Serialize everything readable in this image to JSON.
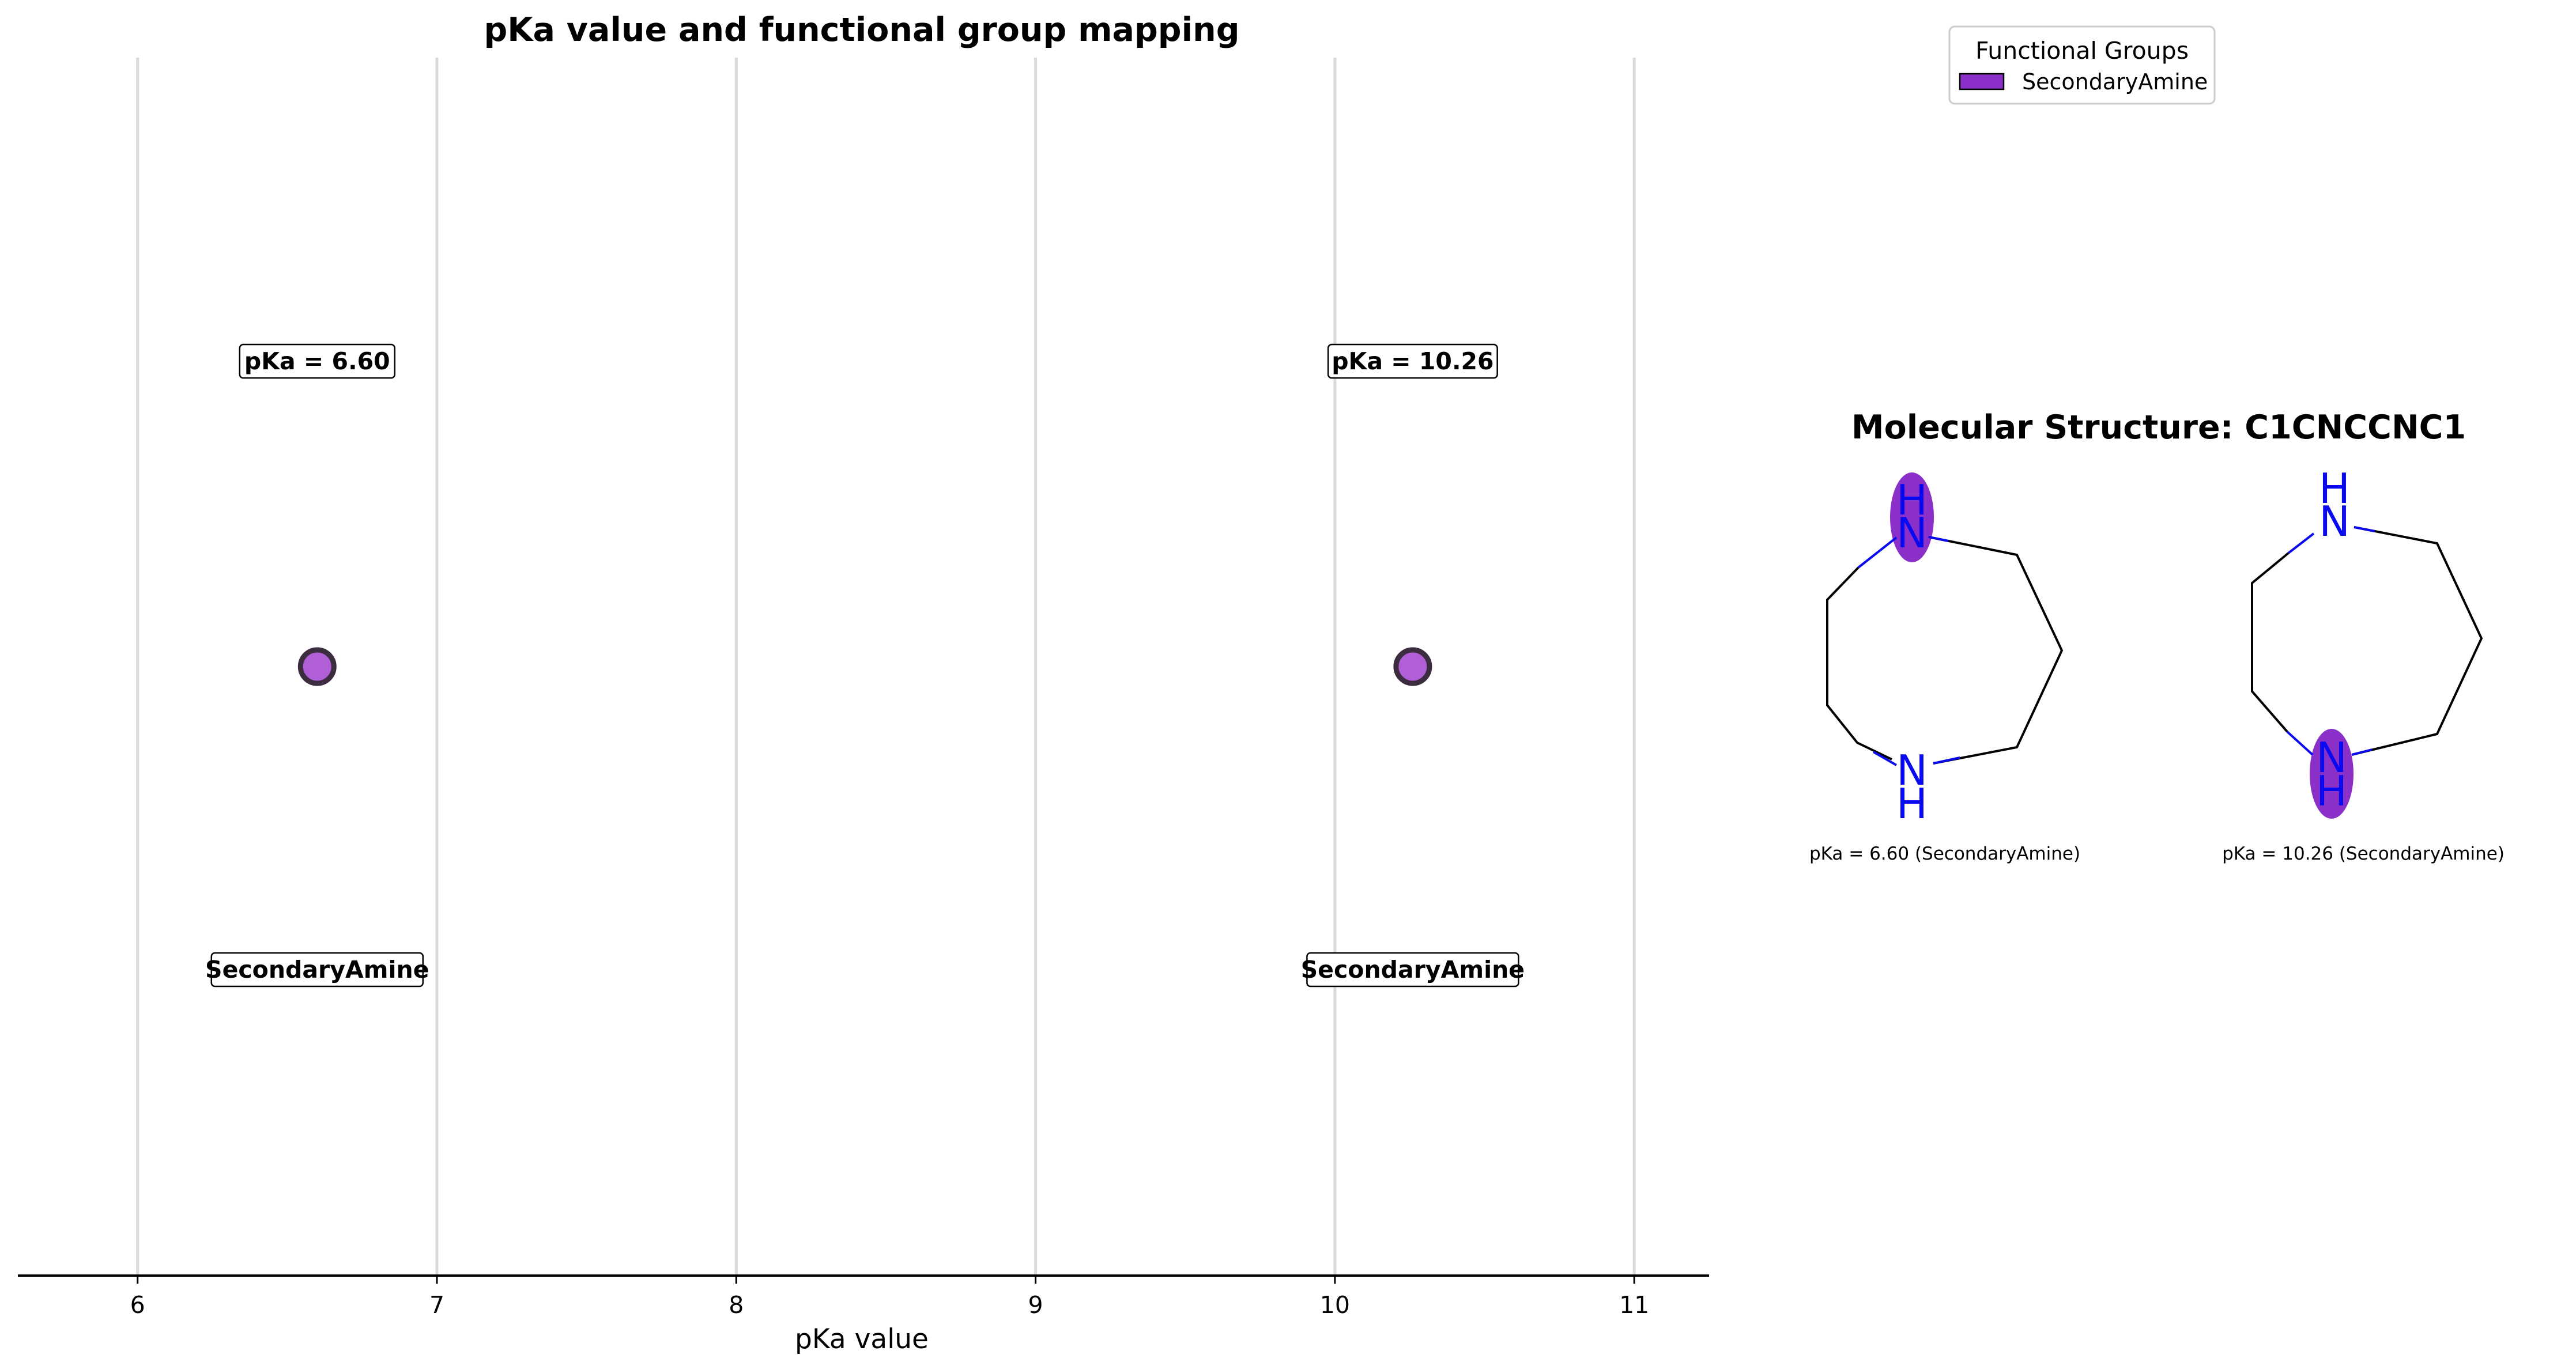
{
  "chart_data": {
    "type": "scatter",
    "title": "pKa value and functional group mapping",
    "xlabel": "pKa value",
    "ylabel": "",
    "xlim": [
      5.6,
      11.25
    ],
    "grid": "vertical",
    "ticks": [
      "6",
      "7",
      "8",
      "9",
      "10",
      "11"
    ],
    "tick_values": [
      6,
      7,
      8,
      9,
      10,
      11
    ],
    "points": [
      {
        "x": 6.6,
        "group": "SecondaryAmine",
        "value_label": "pKa = 6.60",
        "group_label": "SecondaryAmine"
      },
      {
        "x": 10.26,
        "group": "SecondaryAmine",
        "value_label": "pKa = 10.26",
        "group_label": "SecondaryAmine"
      }
    ],
    "point_color": "#b05fd6",
    "point_edge_color": "#3b2d3f"
  },
  "legend": {
    "title": "Functional Groups",
    "placement": "top-right",
    "entries": [
      {
        "label": "SecondaryAmine",
        "color": "#8b2fc9"
      }
    ]
  },
  "structure_panel": {
    "title": "Molecular Structure: C1CNCCNC1",
    "highlight_color": "#8b2fc9",
    "atom_color": "#0a0af0",
    "atom_labels": {
      "n": "N",
      "h": "H"
    },
    "captions": [
      "pKa = 6.60 (SecondaryAmine)",
      "pKa = 10.26 (SecondaryAmine)"
    ]
  }
}
